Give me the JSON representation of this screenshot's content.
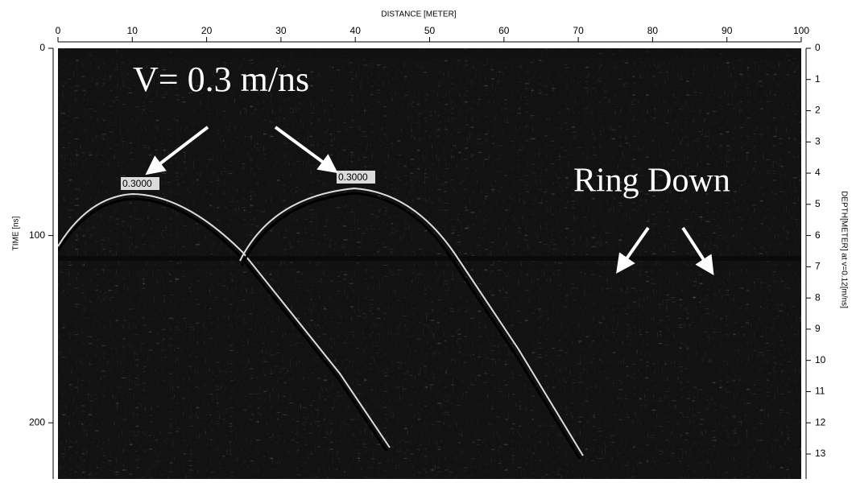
{
  "chart_data": {
    "type": "image",
    "title": "DISTANCE [METER]",
    "y_label": "TIME [ns]",
    "y2_label": "DEPTH[METER] at v=0.12[m/ns]",
    "xlim": [
      0,
      100
    ],
    "xticks": [
      0,
      10,
      20,
      30,
      40,
      50,
      60,
      70,
      80,
      90,
      100
    ],
    "ylim": [
      0,
      230
    ],
    "yticks": [
      0,
      100,
      200
    ],
    "y2lim": [
      0,
      13.8
    ],
    "y2ticks": [
      0,
      1,
      2,
      3,
      4,
      5,
      6,
      7,
      8,
      9,
      10,
      11,
      12,
      13
    ],
    "annotations": [
      "V= 0.3 m/ns",
      "0.3000",
      "0.3000",
      "Ring Down"
    ]
  }
}
